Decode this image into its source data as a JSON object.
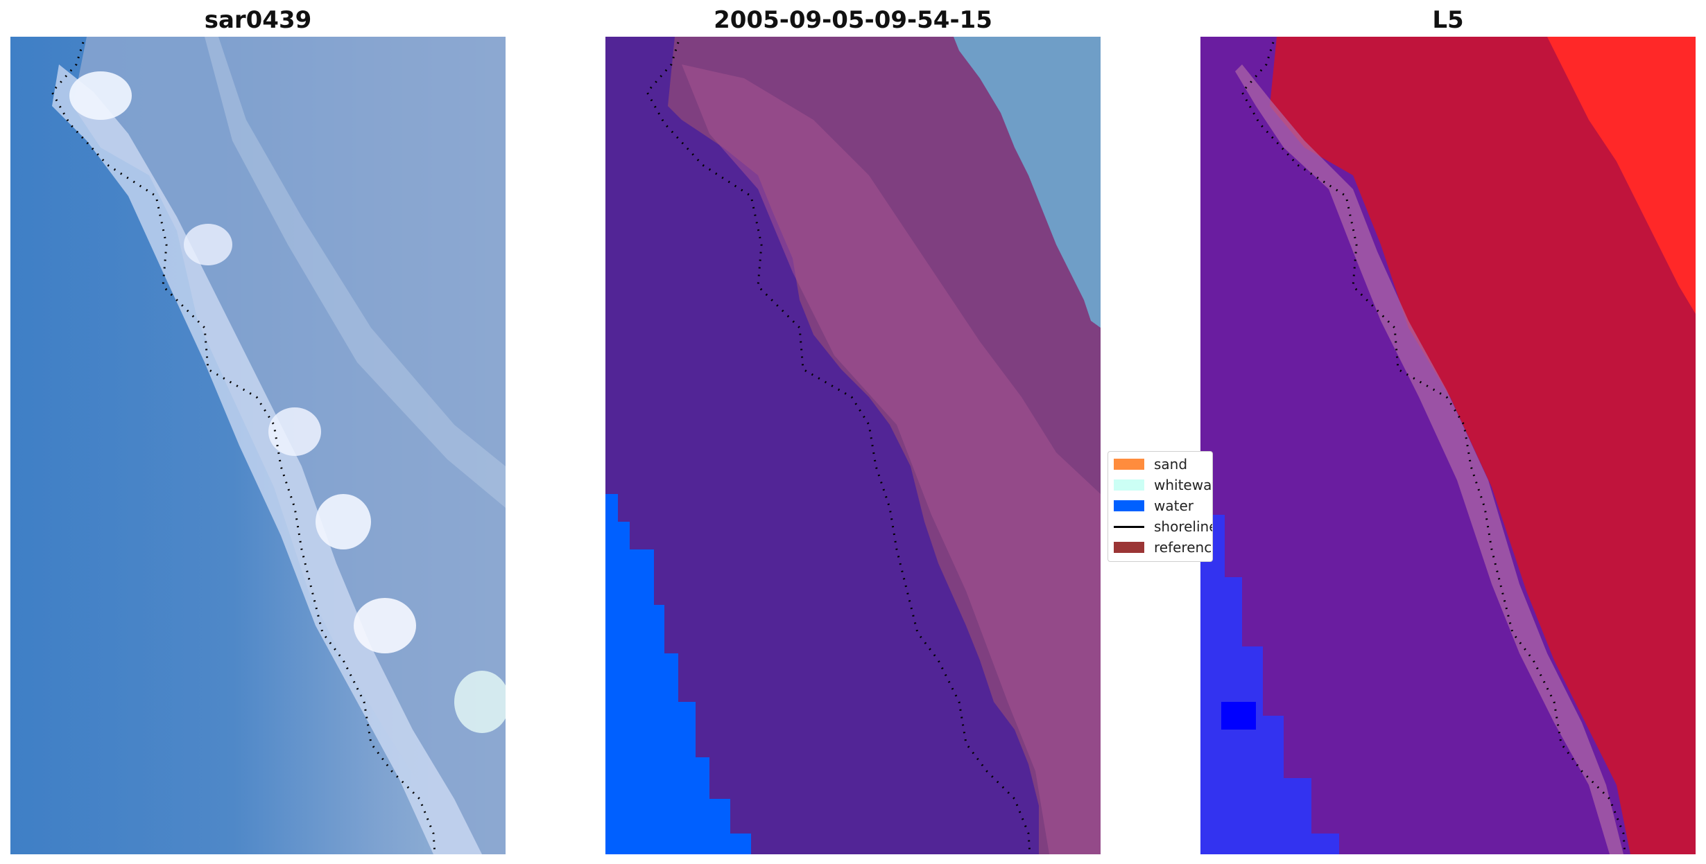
{
  "panels": [
    {
      "title": "sar0439"
    },
    {
      "title": "2005-09-05-09-54-15"
    },
    {
      "title": "L5"
    }
  ],
  "legend": {
    "items": [
      {
        "label": "sand",
        "color": "#ff8c3d",
        "kind": "patch"
      },
      {
        "label": "whitewater",
        "color": "#ccfff5",
        "kind": "patch"
      },
      {
        "label": "water",
        "color": "#0060ff",
        "kind": "patch"
      },
      {
        "label": "shoreline",
        "color": "#000000",
        "kind": "line"
      },
      {
        "label": "reference",
        "color": "#9b3535",
        "kind": "patch"
      }
    ]
  },
  "colors": {
    "rgb_water": "#4a84c8",
    "rgb_land": "#8fa9d2",
    "rgb_foam": "#e6eefc",
    "class_sand_overlay": "#7f3f80",
    "class_water_overlay": "#522596",
    "class_water": "#0060ff",
    "index_land": "#c0143c",
    "index_water": "#6a1da0",
    "index_strong_water": "#2222ff",
    "shoreline": "#000000"
  }
}
